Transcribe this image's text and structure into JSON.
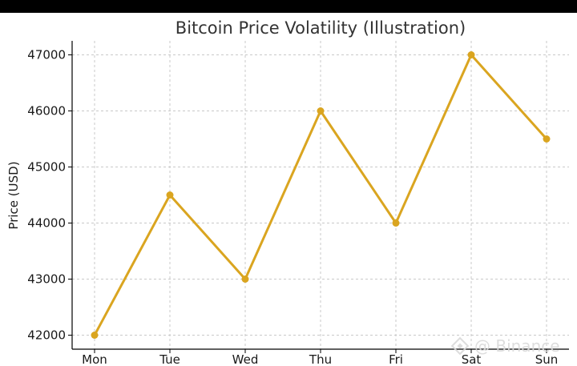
{
  "chart_data": {
    "type": "line",
    "title": "Bitcoin Price Volatility (Illustration)",
    "xlabel": "",
    "ylabel": "Price (USD)",
    "categories": [
      "Mon",
      "Tue",
      "Wed",
      "Thu",
      "Fri",
      "Sat",
      "Sun"
    ],
    "series": [
      {
        "name": "Price",
        "values": [
          42000,
          44500,
          43000,
          46000,
          44000,
          47000,
          45500
        ]
      }
    ],
    "yticks": [
      42000,
      43000,
      44000,
      45000,
      46000,
      47000
    ],
    "ylim": [
      41750,
      47250
    ],
    "grid": true,
    "color": "#DAA520"
  },
  "watermark": {
    "text": "@ Binance",
    "icon": "binance-logo-icon"
  }
}
